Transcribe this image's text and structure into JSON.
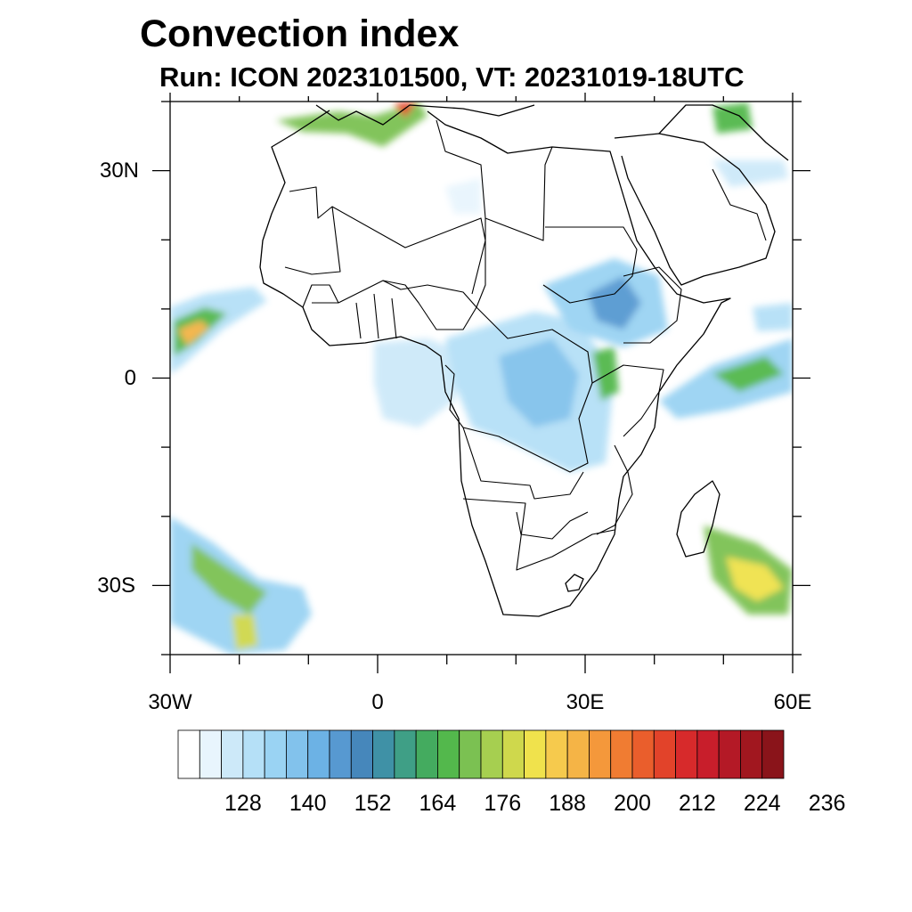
{
  "title": "Convection index",
  "subtitle": "Run: ICON 2023101500,  VT: 20231019-18UTC",
  "axes": {
    "lat_labels": [
      "30N",
      "0",
      "30S"
    ],
    "lon_labels": [
      "30W",
      "0",
      "30E",
      "60E"
    ],
    "lon_range": [
      -30,
      60
    ],
    "lat_range": [
      -40,
      40
    ]
  },
  "colorbar": {
    "labels": [
      "128",
      "140",
      "152",
      "164",
      "176",
      "188",
      "200",
      "212",
      "224",
      "236"
    ],
    "colors": [
      "#ffffff",
      "#e8f5fd",
      "#cde9f9",
      "#b5e0f7",
      "#9ad3f3",
      "#82c2ec",
      "#6cb2e5",
      "#5799d1",
      "#4687bb",
      "#3f91a6",
      "#3f9f86",
      "#44ab5f",
      "#53b84c",
      "#7bc152",
      "#a6cf50",
      "#cfd84c",
      "#f0e24c",
      "#f6ca4d",
      "#f5b446",
      "#f4983b",
      "#f07c32",
      "#ea5e2c",
      "#e2432a",
      "#d72a2b",
      "#c81e2b",
      "#b41926",
      "#a1171f",
      "#8a141a"
    ]
  },
  "colors": {
    "land_outline": "#000000",
    "frame": "#000000"
  }
}
